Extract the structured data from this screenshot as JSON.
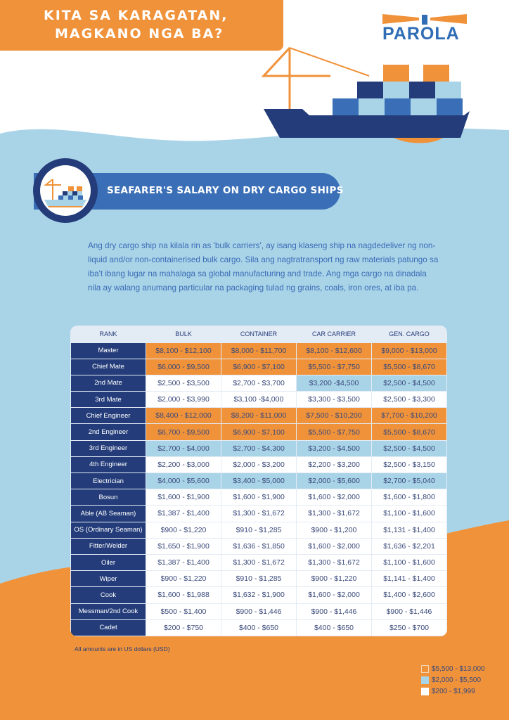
{
  "header": {
    "title_line1": "KITA SA KARAGATAN,",
    "title_line2": "MAGKANO NGA BA?"
  },
  "logo": {
    "text": "PAROLA"
  },
  "banner": {
    "title": "SEAFARER'S SALARY ON DRY CARGO SHIPS",
    "icon": "cargo-ship-icon"
  },
  "intro": "Ang dry cargo ship na kilala rin as 'bulk carriers', ay isang klaseng ship na nagdedeliver ng non-liquid and/or non-containerised bulk cargo. Sila ang nagtratransport ng raw materials patungo sa iba't ibang lugar na mahalaga sa global manufacturing and trade. Ang mga cargo na dinadala nila ay walang anumang particular na packaging tulad ng grains, coals, iron ores, at iba pa.",
  "colors": {
    "orange": "#f0923a",
    "navy": "#243d7a",
    "light_blue": "#a9d4e8",
    "blue": "#3a6fb7"
  },
  "table": {
    "headers": [
      "RANK",
      "BULK",
      "CONTAINER",
      "CAR CARRIER",
      "GEN. CARGO"
    ],
    "rows": [
      {
        "rank": "Master",
        "values": [
          "$8,100 - $12,100",
          "$8,000 - $11,700",
          "$8,100 - $12,600",
          "$9,000 - $13,000"
        ],
        "tiers": [
          "high",
          "high",
          "high",
          "high"
        ]
      },
      {
        "rank": "Chief Mate",
        "values": [
          "$6,000 - $9,500",
          "$6,900  - $7,100",
          "$5,500 - $7,750",
          "$5,500 - $8,670"
        ],
        "tiers": [
          "high",
          "high",
          "high",
          "high"
        ]
      },
      {
        "rank": "2nd Mate",
        "values": [
          "$2,500 - $3,500",
          "$2,700 - $3,700",
          "$3,200  -$4,500",
          "$2,500 - $4,500"
        ],
        "tiers": [
          "low",
          "low",
          "mid",
          "mid"
        ]
      },
      {
        "rank": "3rd Mate",
        "values": [
          "$2,000 - $3,990",
          "$3,100  -$4,000",
          "$3,300 - $3,500",
          "$2,500 - $3,300"
        ],
        "tiers": [
          "low",
          "low",
          "low",
          "low"
        ]
      },
      {
        "rank": "Chief Engineer",
        "values": [
          "$8,400 - $12,000",
          "$8,200 - $11,000",
          "$7,500 - $10,200",
          "$7,700 - $10,200"
        ],
        "tiers": [
          "high",
          "high",
          "high",
          "high"
        ]
      },
      {
        "rank": "2nd Engineer",
        "values": [
          "$6,700 - $9,500",
          "$6,900 - $7,100",
          "$5,500 - $7,750",
          "$5,500 - $8,670"
        ],
        "tiers": [
          "high",
          "high",
          "high",
          "high"
        ]
      },
      {
        "rank": "3rd Engineer",
        "values": [
          "$2,700 - $4,000",
          "$2,700 - $4,300",
          "$3,200 - $4,500",
          "$2,500 - $4,500"
        ],
        "tiers": [
          "mid",
          "mid",
          "mid",
          "mid"
        ]
      },
      {
        "rank": "4th Engineer",
        "values": [
          "$2,200 - $3,000",
          "$2,000 - $3,200",
          "$2,200 - $3,200",
          "$2,500 - $3,150"
        ],
        "tiers": [
          "low",
          "low",
          "low",
          "low"
        ]
      },
      {
        "rank": "Electrician",
        "values": [
          "$4,000 - $5,600",
          "$3,400 - $5,000",
          "$2,000 - $5,600",
          "$2,700 - $5,040"
        ],
        "tiers": [
          "mid",
          "mid",
          "mid",
          "mid"
        ]
      },
      {
        "rank": "Bosun",
        "values": [
          "$1,600 - $1,900",
          "$1,600 - $1,900",
          "$1,600 - $2,000",
          "$1,600 - $1,800"
        ],
        "tiers": [
          "low",
          "low",
          "low",
          "low"
        ]
      },
      {
        "rank": "Able (AB Seaman)",
        "values": [
          "$1,387 - $1,400",
          "$1,300 - $1,672",
          "$1,300 - $1,672",
          "$1,100 - $1,600"
        ],
        "tiers": [
          "low",
          "low",
          "low",
          "low"
        ]
      },
      {
        "rank": "OS (Ordinary Seaman)",
        "values": [
          "$900 - $1,220",
          "$910 - $1,285",
          "$900 - $1,200",
          "$1,131 - $1,400"
        ],
        "tiers": [
          "low",
          "low",
          "low",
          "low"
        ]
      },
      {
        "rank": "Fitter/Welder",
        "values": [
          "$1,650 - $1,900",
          "$1,636 - $1,850",
          "$1,600 - $2,000",
          "$1,636 - $2,201"
        ],
        "tiers": [
          "low",
          "low",
          "low",
          "low"
        ]
      },
      {
        "rank": "Oiler",
        "values": [
          "$1,387 - $1,400",
          "$1,300 - $1,672",
          "$1,300 - $1,672",
          "$1,100 - $1,600"
        ],
        "tiers": [
          "low",
          "low",
          "low",
          "low"
        ]
      },
      {
        "rank": "Wiper",
        "values": [
          "$900 - $1,220",
          "$910 - $1,285",
          "$900 - $1,220",
          "$1,141 - $1,400"
        ],
        "tiers": [
          "low",
          "low",
          "low",
          "low"
        ]
      },
      {
        "rank": "Cook",
        "values": [
          "$1,600 - $1,988",
          "$1,632 - $1,900",
          "$1,600 - $2,000",
          "$1,400 - $2,600"
        ],
        "tiers": [
          "low",
          "low",
          "low",
          "low"
        ]
      },
      {
        "rank": "Messman/2nd Cook",
        "values": [
          "$500 - $1,400",
          "$900 - $1,446",
          "$900 - $1,446",
          "$900 - $1,446"
        ],
        "tiers": [
          "low",
          "low",
          "low",
          "low"
        ]
      },
      {
        "rank": "Cadet",
        "values": [
          "$200 - $750",
          "$400 - $650",
          "$400 - $650",
          "$250 - $700"
        ],
        "tiers": [
          "low",
          "low",
          "low",
          "low"
        ]
      }
    ]
  },
  "footnote": "All amounts are in US dollars (USD)",
  "legend": [
    {
      "label": "$5,500 - $13,000",
      "tier": "high"
    },
    {
      "label": "$2,000 - $5,500",
      "tier": "mid"
    },
    {
      "label": "$200 - $1,999",
      "tier": "low"
    }
  ]
}
